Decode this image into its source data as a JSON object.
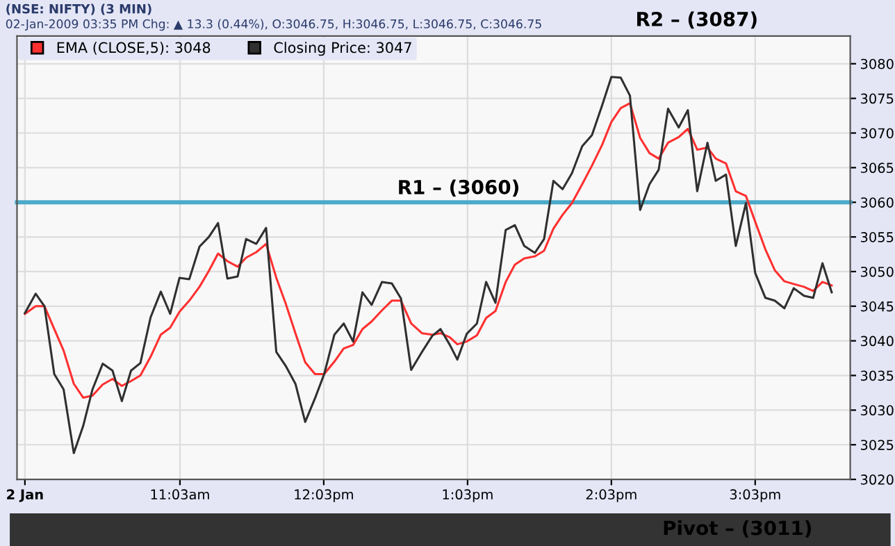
{
  "chart_data": {
    "type": "line",
    "title": "(NSE: NIFTY) (3 MIN)",
    "subtitle": "02-Jan-2009 03:35 PM Chg: ▲ 13.3 (0.44%), O:3046.75, H:3046.75, L:3046.75, C:3046.75",
    "annotations": [
      "R2 – (3087)",
      "Pivot – (3011)"
    ],
    "x": [
      9.972,
      10.047,
      10.108,
      10.176,
      10.241,
      10.312,
      10.377,
      10.442,
      10.513,
      10.581,
      10.646,
      10.71,
      10.775,
      10.846,
      10.917,
      10.982,
      11.047,
      11.115,
      11.186,
      11.251,
      11.315,
      11.38,
      11.451,
      11.51,
      11.581,
      11.649,
      11.72,
      11.785,
      11.853,
      11.921,
      11.989,
      12.053,
      12.124,
      12.189,
      12.254,
      12.319,
      12.383,
      12.455,
      12.523,
      12.587,
      12.658,
      12.733,
      12.804,
      12.862,
      12.927,
      12.979,
      13.044,
      13.115,
      13.179,
      13.244,
      13.315,
      13.379,
      13.444,
      13.518,
      13.582,
      13.647,
      13.711,
      13.776,
      13.847,
      13.915,
      13.986,
      14.05,
      14.115,
      14.179,
      14.25,
      14.315,
      14.379,
      14.444,
      14.518,
      14.582,
      14.647,
      14.718,
      14.776,
      14.847,
      14.915,
      14.986,
      15.05,
      15.121,
      15.186,
      15.253,
      15.318,
      15.389,
      15.453,
      15.518,
      15.582
    ],
    "series": [
      {
        "name": "EMA (CLOSE,5): 3048",
        "color": "#ff3030",
        "values": [
          3043.9,
          3045.0,
          3045.0,
          3041.7,
          3038.6,
          3033.8,
          3031.8,
          3032.1,
          3033.7,
          3034.5,
          3033.5,
          3034.2,
          3035.0,
          3037.7,
          3040.9,
          3041.9,
          3044.2,
          3045.8,
          3047.8,
          3050.1,
          3052.6,
          3051.5,
          3050.7,
          3052.0,
          3052.8,
          3054.0,
          3049.1,
          3045.4,
          3041.1,
          3036.9,
          3035.2,
          3035.2,
          3037.0,
          3038.9,
          3039.4,
          3041.7,
          3042.8,
          3044.4,
          3045.8,
          3045.8,
          3042.5,
          3041.1,
          3040.9,
          3041.1,
          3040.5,
          3039.5,
          3039.9,
          3040.8,
          3043.3,
          3044.3,
          3048.5,
          3051.0,
          3051.9,
          3052.2,
          3053.0,
          3056.2,
          3058.2,
          3059.9,
          3062.6,
          3065.3,
          3068.3,
          3071.6,
          3073.6,
          3074.3,
          3069.3,
          3067.1,
          3066.3,
          3068.6,
          3069.4,
          3070.6,
          3067.6,
          3067.9,
          3066.3,
          3065.6,
          3061.6,
          3060.9,
          3057.2,
          3053.2,
          3050.2,
          3048.6,
          3048.2,
          3047.8,
          3047.2,
          3048.5,
          3048.0
        ]
      },
      {
        "name": "Closing Price: 3047",
        "color": "#303030",
        "values": [
          3044.0,
          3046.8,
          3045.0,
          3035.2,
          3033.0,
          3023.8,
          3027.7,
          3033.0,
          3036.7,
          3035.7,
          3031.3,
          3035.7,
          3036.8,
          3043.4,
          3047.1,
          3043.9,
          3049.1,
          3048.9,
          3053.6,
          3055.0,
          3057.0,
          3049.0,
          3049.3,
          3054.7,
          3054.0,
          3056.3,
          3038.4,
          3036.4,
          3033.8,
          3028.3,
          3031.7,
          3035.2,
          3040.9,
          3042.5,
          3039.9,
          3047.0,
          3045.2,
          3048.5,
          3048.3,
          3046.1,
          3035.8,
          3038.4,
          3040.7,
          3041.7,
          3039.4,
          3037.3,
          3041.0,
          3042.5,
          3048.5,
          3045.5,
          3056.0,
          3056.7,
          3053.7,
          3052.7,
          3054.7,
          3063.1,
          3061.9,
          3064.2,
          3068.1,
          3069.7,
          3074.0,
          3078.1,
          3078.0,
          3075.4,
          3058.9,
          3062.6,
          3064.7,
          3073.5,
          3070.8,
          3073.3,
          3061.6,
          3068.6,
          3063.1,
          3064.0,
          3053.7,
          3059.9,
          3049.8,
          3046.2,
          3045.8,
          3044.7,
          3047.6,
          3046.5,
          3046.2,
          3051.2,
          3047.0
        ]
      }
    ],
    "xlim": [
      9.917,
      15.711
    ],
    "ylim": [
      3020,
      3084
    ],
    "xticks": [
      {
        "value": 9.972,
        "label": "2 Jan"
      },
      {
        "value": 11.05,
        "label": "11:03am"
      },
      {
        "value": 12.05,
        "label": "12:03pm"
      },
      {
        "value": 13.05,
        "label": "1:03pm"
      },
      {
        "value": 14.05,
        "label": "2:03pm"
      },
      {
        "value": 15.05,
        "label": "3:03pm"
      }
    ],
    "yticks": [
      3020,
      3025,
      3030,
      3035,
      3040,
      3045,
      3050,
      3055,
      3060,
      3065,
      3070,
      3075,
      3080
    ],
    "ref_lines": [
      {
        "axis": "y",
        "value": 3060,
        "label": "R1 – (3060)",
        "color": "#4aaac8"
      }
    ],
    "grid": true,
    "legend": "top left",
    "marker": "none",
    "line_style": "solid"
  }
}
